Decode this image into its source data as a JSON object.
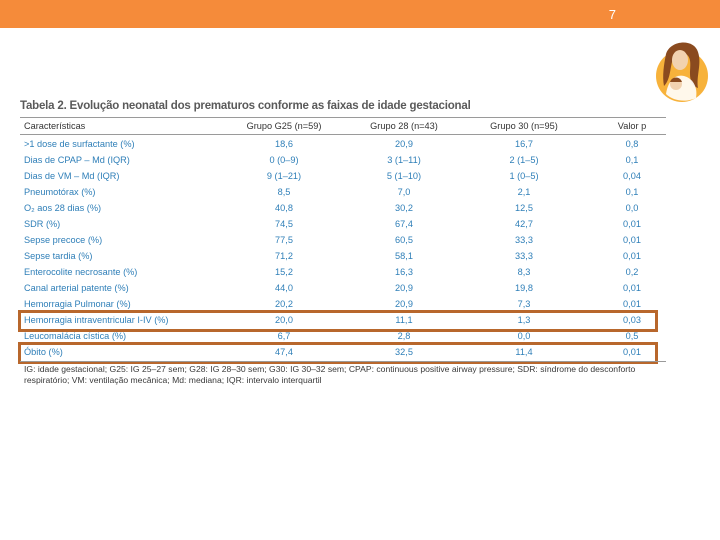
{
  "header": {
    "page_number": "7",
    "accent_color": "#f58b3a"
  },
  "logo": {
    "icon": "mother-and-child-icon"
  },
  "table": {
    "title": "Tabela 2. Evolução neonatal dos prematuros conforme as faixas de idade gestacional",
    "columns": [
      "Características",
      "Grupo G25 (n=59)",
      "Grupo 28 (n=43)",
      "Grupo 30 (n=95)",
      "Valor p"
    ],
    "rows": [
      [
        ">1 dose de surfactante (%)",
        "18,6",
        "20,9",
        "16,7",
        "0,8"
      ],
      [
        "Dias de CPAP – Md (IQR)",
        "0 (0–9)",
        "3 (1–11)",
        "2 (1–5)",
        "0,1"
      ],
      [
        "Dias de VM – Md (IQR)",
        "9 (1–21)",
        "5 (1–10)",
        "1 (0–5)",
        "0,04"
      ],
      [
        "Pneumotórax (%)",
        "8,5",
        "7,0",
        "2,1",
        "0,1"
      ],
      [
        "O₂ aos 28 dias (%)",
        "40,8",
        "30,2",
        "12,5",
        "0,0"
      ],
      [
        "SDR (%)",
        "74,5",
        "67,4",
        "42,7",
        "0,01"
      ],
      [
        "Sepse precoce (%)",
        "77,5",
        "60,5",
        "33,3",
        "0,01"
      ],
      [
        "Sepse tardia (%)",
        "71,2",
        "58,1",
        "33,3",
        "0,01"
      ],
      [
        "Enterocolite necrosante (%)",
        "15,2",
        "16,3",
        "8,3",
        "0,2"
      ],
      [
        "Canal arterial patente (%)",
        "44,0",
        "20,9",
        "19,8",
        "0,01"
      ],
      [
        "Hemorragia Pulmonar (%)",
        "20,2",
        "20,9",
        "7,3",
        "0,01"
      ],
      [
        "Hemorragia intraventricular I-IV (%)",
        "20,0",
        "11,1",
        "1,3",
        "0,03"
      ],
      [
        "Leucomalácia cística (%)",
        "6,7",
        "2,8",
        "0,0",
        "0,5"
      ],
      [
        "Óbito (%)",
        "47,4",
        "32,5",
        "11,4",
        "0,01"
      ]
    ],
    "footnote": "IG: idade gestacional; G25: IG 25–27 sem; G28: IG 28–30 sem; G30: IG 30–32 sem; CPAP: continuous positive airway pressure; SDR: síndrome do desconforto respiratório; VM: ventilação mecânica; Md: mediana; IQR: intervalo interquartil",
    "highlight_color": "#b8672c"
  }
}
